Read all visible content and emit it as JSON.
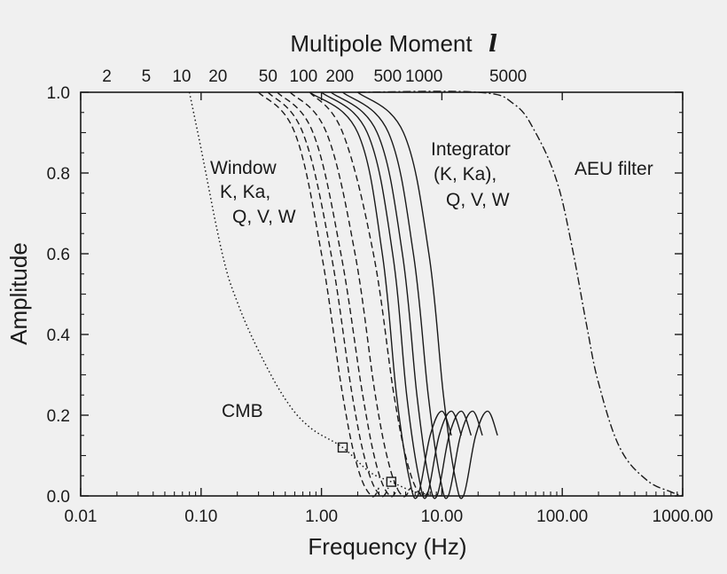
{
  "chart_data": {
    "type": "line",
    "xlabel": "Frequency (Hz)",
    "ylabel": "Amplitude",
    "top_axis_label": "Multipole Moment",
    "top_axis_symbol": "l",
    "x_scale": "log",
    "xlim": [
      0.01,
      1000
    ],
    "ylim": [
      0.0,
      1.0
    ],
    "x_ticks": [
      {
        "value": 0.01,
        "label": "0.01"
      },
      {
        "value": 0.1,
        "label": "0.10"
      },
      {
        "value": 1,
        "label": "1.00"
      },
      {
        "value": 10,
        "label": "10.00"
      },
      {
        "value": 100,
        "label": "100.00"
      },
      {
        "value": 1000,
        "label": "1000.00"
      }
    ],
    "y_ticks": [
      {
        "value": 0.0,
        "label": "0.0"
      },
      {
        "value": 0.2,
        "label": "0.2"
      },
      {
        "value": 0.4,
        "label": "0.4"
      },
      {
        "value": 0.6,
        "label": "0.6"
      },
      {
        "value": 0.8,
        "label": "0.8"
      },
      {
        "value": 1.0,
        "label": "1.0"
      }
    ],
    "top_ticks": [
      {
        "l": 2,
        "freq": 0.0165,
        "label": "2"
      },
      {
        "l": 5,
        "freq": 0.035,
        "label": "5"
      },
      {
        "l": 10,
        "freq": 0.069,
        "label": "10"
      },
      {
        "l": 20,
        "freq": 0.138,
        "label": "20"
      },
      {
        "l": 50,
        "freq": 0.36,
        "label": "50"
      },
      {
        "l": 100,
        "freq": 0.71,
        "label": "100"
      },
      {
        "l": 200,
        "freq": 1.42,
        "label": "200"
      },
      {
        "l": 500,
        "freq": 3.55,
        "label": "500"
      },
      {
        "l": 1000,
        "freq": 7.1,
        "label": "1000"
      },
      {
        "l": 5000,
        "freq": 35.5,
        "label": "5000"
      }
    ],
    "series": [
      {
        "group": "window",
        "style": "dashed",
        "band": "K",
        "x": [
          0.3,
          0.6,
          1.0,
          1.5,
          2.0,
          2.6,
          3.0
        ],
        "y": [
          1.0,
          0.9,
          0.6,
          0.25,
          0.07,
          0.0,
          0.02
        ]
      },
      {
        "group": "window",
        "style": "dashed",
        "band": "Ka",
        "x": [
          0.36,
          0.7,
          1.2,
          1.8,
          2.4,
          3.1,
          3.6
        ],
        "y": [
          1.0,
          0.9,
          0.6,
          0.25,
          0.07,
          0.0,
          0.02
        ]
      },
      {
        "group": "window",
        "style": "dashed",
        "band": "Q",
        "x": [
          0.43,
          0.85,
          1.45,
          2.2,
          2.9,
          3.7,
          4.3
        ],
        "y": [
          1.0,
          0.9,
          0.6,
          0.25,
          0.07,
          0.0,
          0.02
        ]
      },
      {
        "group": "window",
        "style": "dashed",
        "band": "V",
        "x": [
          0.55,
          1.1,
          1.9,
          2.8,
          3.7,
          4.7,
          5.5
        ],
        "y": [
          1.0,
          0.9,
          0.6,
          0.25,
          0.07,
          0.0,
          0.02
        ]
      },
      {
        "group": "window",
        "style": "dashed",
        "band": "W",
        "x": [
          0.8,
          1.5,
          2.7,
          4.0,
          5.3,
          6.8,
          8.0
        ],
        "y": [
          1.0,
          0.9,
          0.6,
          0.25,
          0.07,
          0.0,
          0.02
        ]
      },
      {
        "group": "integrator",
        "style": "solid",
        "band": "K",
        "x": [
          0.8,
          2.0,
          3.2,
          4.2,
          5.3,
          6.3,
          8.0,
          10.0,
          12.0
        ],
        "y": [
          1.0,
          0.9,
          0.6,
          0.25,
          0.05,
          0.0,
          0.15,
          0.21,
          0.15
        ]
      },
      {
        "group": "integrator",
        "style": "solid",
        "band": "Ka",
        "x": [
          1.0,
          2.4,
          3.9,
          5.1,
          6.4,
          7.5,
          9.5,
          12.0,
          14.5
        ],
        "y": [
          1.0,
          0.9,
          0.6,
          0.25,
          0.05,
          0.0,
          0.15,
          0.21,
          0.15
        ]
      },
      {
        "group": "integrator",
        "style": "solid",
        "band": "Q",
        "x": [
          1.2,
          2.9,
          4.7,
          6.2,
          7.7,
          9.1,
          11.5,
          14.5,
          17.5
        ],
        "y": [
          1.0,
          0.9,
          0.6,
          0.25,
          0.05,
          0.0,
          0.15,
          0.21,
          0.15
        ]
      },
      {
        "group": "integrator",
        "style": "solid",
        "band": "V",
        "x": [
          1.5,
          3.6,
          5.8,
          7.7,
          9.6,
          11.3,
          14.3,
          18.0,
          21.7
        ],
        "y": [
          1.0,
          0.9,
          0.6,
          0.25,
          0.05,
          0.0,
          0.15,
          0.21,
          0.15
        ]
      },
      {
        "group": "integrator",
        "style": "solid",
        "band": "W",
        "x": [
          2.0,
          4.8,
          7.8,
          10.3,
          12.8,
          15.1,
          19.1,
          24.0,
          29.0
        ],
        "y": [
          1.0,
          0.9,
          0.6,
          0.25,
          0.05,
          0.0,
          0.15,
          0.21,
          0.15
        ]
      },
      {
        "group": "cmb",
        "style": "dotted",
        "x": [
          0.08,
          0.1,
          0.15,
          0.2,
          0.3,
          0.5,
          0.8,
          1.5,
          2.5,
          3.8,
          6.0,
          10.0
        ],
        "y": [
          1.0,
          0.86,
          0.6,
          0.48,
          0.36,
          0.24,
          0.17,
          0.12,
          0.06,
          0.035,
          0.01,
          0.0
        ]
      },
      {
        "group": "aeu",
        "style": "dashdot",
        "x": [
          2.0,
          20.0,
          40.0,
          60.0,
          90.0,
          120.0,
          160.0,
          200.0,
          300.0,
          500.0,
          800.0,
          1000.0
        ],
        "y": [
          1.0,
          1.0,
          0.97,
          0.9,
          0.78,
          0.62,
          0.42,
          0.28,
          0.12,
          0.04,
          0.01,
          0.0
        ]
      }
    ],
    "markers": [
      {
        "x": 1.5,
        "y": 0.12,
        "shape": "square"
      },
      {
        "x": 3.8,
        "y": 0.035,
        "shape": "square"
      }
    ],
    "annotations": {
      "window": [
        "Window",
        "K, Ka,",
        "Q, V, W"
      ],
      "integrator": [
        "Integrator",
        "(K, Ka),",
        "Q, V, W"
      ],
      "aeu": "AEU filter",
      "cmb": "CMB"
    },
    "grid": false
  }
}
